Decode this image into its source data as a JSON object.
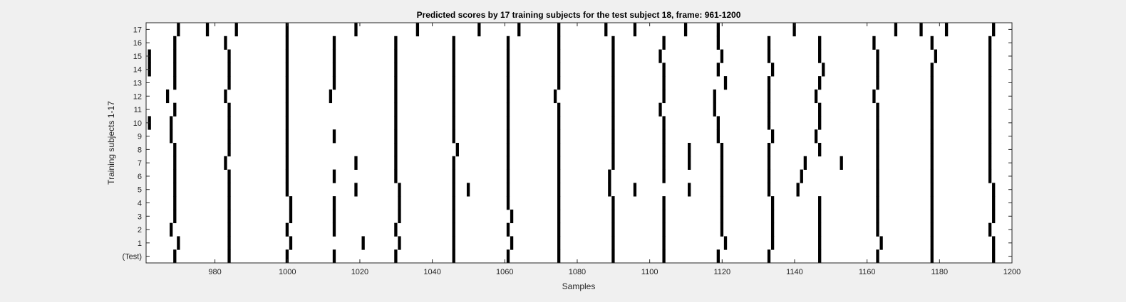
{
  "chart_data": {
    "type": "heatmap",
    "title": "Predicted scores by 17 training subjects for the test subject 18, frame: 961-1200",
    "xlabel": "Samples",
    "ylabel": "Training subjects 1-17",
    "xlim": [
      961,
      1200
    ],
    "x_ticks": [
      980,
      1000,
      1020,
      1040,
      1060,
      1080,
      1100,
      1120,
      1140,
      1160,
      1180,
      1200
    ],
    "y_categories": [
      "(Test)",
      "1",
      "2",
      "3",
      "4",
      "5",
      "6",
      "7",
      "8",
      "9",
      "10",
      "11",
      "12",
      "13",
      "14",
      "15",
      "16",
      "17"
    ],
    "grid": false,
    "colors": {
      "mark": "#000000",
      "background": "#ffffff",
      "figure": "#f0f0f0"
    },
    "rows": [
      {
        "label": "(Test)",
        "samples": [
          969,
          984,
          1000,
          1013,
          1030,
          1046,
          1061,
          1075,
          1090,
          1104,
          1119,
          1133,
          1147,
          1163,
          1178,
          1195
        ]
      },
      {
        "label": "1",
        "samples": [
          970,
          984,
          1001,
          1021,
          1031,
          1046,
          1062,
          1075,
          1090,
          1104,
          1121,
          1134,
          1147,
          1164,
          1178,
          1195
        ]
      },
      {
        "label": "2",
        "samples": [
          968,
          984,
          1000,
          1013,
          1030,
          1046,
          1061,
          1075,
          1090,
          1104,
          1120,
          1134,
          1147,
          1163,
          1178,
          1194
        ]
      },
      {
        "label": "3",
        "samples": [
          969,
          984,
          1001,
          1013,
          1031,
          1046,
          1062,
          1075,
          1090,
          1104,
          1120,
          1134,
          1147,
          1163,
          1178,
          1195
        ]
      },
      {
        "label": "4",
        "samples": [
          969,
          984,
          1001,
          1013,
          1031,
          1046,
          1061,
          1075,
          1090,
          1104,
          1120,
          1134,
          1147,
          1163,
          1178,
          1195
        ]
      },
      {
        "label": "5",
        "samples": [
          969,
          984,
          1000,
          1019,
          1031,
          1046,
          1050,
          1061,
          1075,
          1089,
          1096,
          1111,
          1120,
          1133,
          1141,
          1163,
          1178,
          1195
        ]
      },
      {
        "label": "6",
        "samples": [
          969,
          984,
          1000,
          1013,
          1030,
          1046,
          1061,
          1075,
          1089,
          1104,
          1120,
          1133,
          1142,
          1163,
          1178,
          1194
        ]
      },
      {
        "label": "7",
        "samples": [
          969,
          983,
          1000,
          1019,
          1030,
          1046,
          1061,
          1075,
          1090,
          1104,
          1111,
          1120,
          1133,
          1143,
          1153,
          1163,
          1178,
          1194
        ]
      },
      {
        "label": "8",
        "samples": [
          969,
          984,
          1000,
          1030,
          1047,
          1061,
          1075,
          1090,
          1104,
          1111,
          1120,
          1133,
          1147,
          1163,
          1178,
          1194
        ]
      },
      {
        "label": "9",
        "samples": [
          968,
          984,
          1000,
          1013,
          1030,
          1046,
          1061,
          1075,
          1090,
          1104,
          1119,
          1134,
          1146,
          1163,
          1178,
          1194
        ]
      },
      {
        "label": "10",
        "samples": [
          962,
          968,
          984,
          1000,
          1030,
          1046,
          1061,
          1075,
          1090,
          1104,
          1119,
          1133,
          1147,
          1163,
          1178,
          1194
        ]
      },
      {
        "label": "11",
        "samples": [
          969,
          984,
          1000,
          1030,
          1046,
          1061,
          1075,
          1090,
          1103,
          1118,
          1133,
          1147,
          1163,
          1178,
          1194
        ]
      },
      {
        "label": "12",
        "samples": [
          967,
          983,
          1000,
          1012,
          1030,
          1046,
          1061,
          1074,
          1090,
          1104,
          1118,
          1133,
          1146,
          1162,
          1178,
          1194
        ]
      },
      {
        "label": "13",
        "samples": [
          969,
          984,
          1000,
          1013,
          1030,
          1046,
          1061,
          1075,
          1090,
          1104,
          1121,
          1133,
          1147,
          1163,
          1178,
          1194
        ]
      },
      {
        "label": "14",
        "samples": [
          962,
          969,
          984,
          1000,
          1013,
          1030,
          1046,
          1061,
          1075,
          1090,
          1104,
          1119,
          1134,
          1148,
          1163,
          1178,
          1194
        ]
      },
      {
        "label": "15",
        "samples": [
          962,
          969,
          984,
          1000,
          1013,
          1030,
          1046,
          1061,
          1075,
          1090,
          1103,
          1120,
          1133,
          1147,
          1163,
          1179,
          1194
        ]
      },
      {
        "label": "16",
        "samples": [
          969,
          983,
          1000,
          1013,
          1030,
          1046,
          1061,
          1075,
          1090,
          1104,
          1119,
          1133,
          1147,
          1162,
          1178,
          1194
        ]
      },
      {
        "label": "17",
        "samples": [
          970,
          978,
          986,
          1000,
          1019,
          1036,
          1053,
          1064,
          1075,
          1088,
          1096,
          1110,
          1119,
          1140,
          1168,
          1175,
          1182,
          1195
        ]
      }
    ]
  }
}
